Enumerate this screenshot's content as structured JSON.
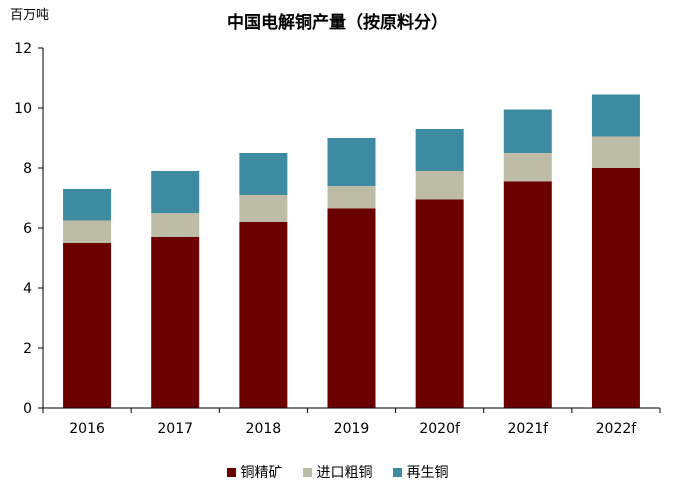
{
  "chart_data": {
    "type": "bar",
    "stacked": true,
    "title": "中国电解铜产量（按原料分）",
    "unit_label": "百万吨",
    "categories": [
      "2016",
      "2017",
      "2018",
      "2019",
      "2020f",
      "2021f",
      "2022f"
    ],
    "series": [
      {
        "name": "铜精矿",
        "color": "#6b0000",
        "values": [
          5.5,
          5.7,
          6.2,
          6.65,
          6.95,
          7.55,
          8.0
        ]
      },
      {
        "name": "进口粗铜",
        "color": "#bdbda7",
        "values": [
          0.75,
          0.8,
          0.9,
          0.75,
          0.95,
          0.95,
          1.05
        ]
      },
      {
        "name": "再生铜",
        "color": "#3e8aa0",
        "values": [
          1.05,
          1.4,
          1.4,
          1.6,
          1.4,
          1.45,
          1.4
        ]
      }
    ],
    "ylim": [
      0,
      12
    ],
    "yticks": [
      0,
      2,
      4,
      6,
      8,
      10,
      12
    ],
    "grid": false,
    "legend_position": "bottom"
  }
}
